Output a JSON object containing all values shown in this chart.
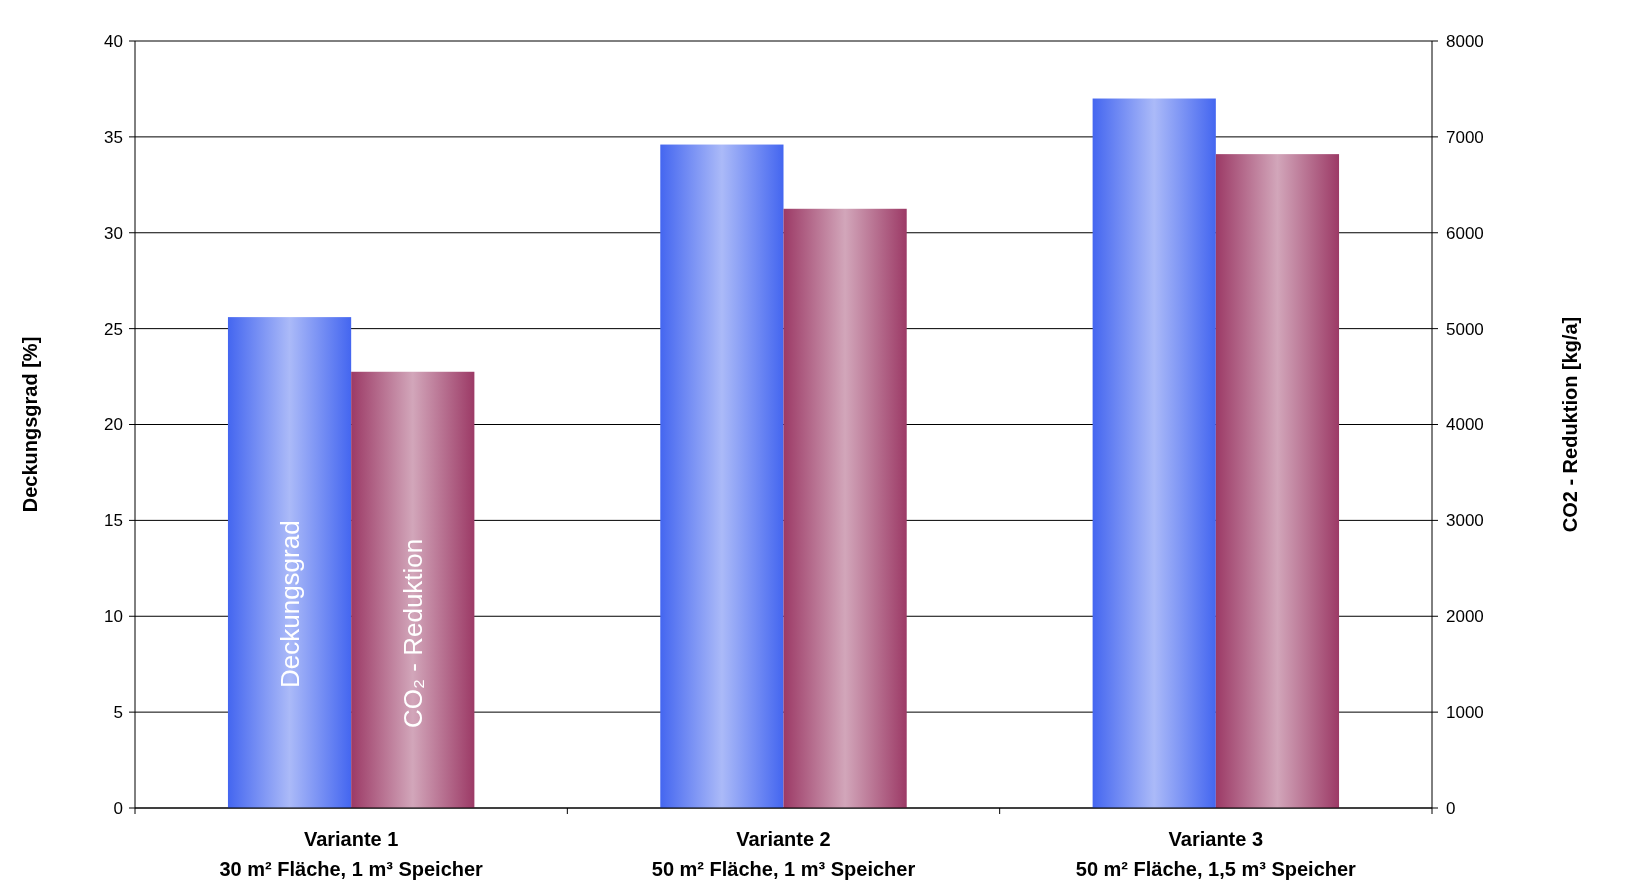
{
  "chart_data": {
    "type": "bar",
    "ylabel": "Deckungsgrad [%]",
    "y2label": "CO2 - Reduktion [kg/a]",
    "categories": [
      "Variante 1\n30 m² Fläche, 1 m³ Speicher",
      "Variante 2\n50 m² Fläche, 1 m³ Speicher",
      "Variante 3\n50 m² Fläche, 1,5 m³ Speicher"
    ],
    "series": [
      {
        "name": "Deckungsgrad",
        "color": "#4466f0",
        "values": [
          25.6,
          34.6,
          37
        ]
      },
      {
        "name": "CO₂ - Reduktion",
        "color": "#9c3a66",
        "axis": "y2",
        "values": [
          4550,
          6250,
          6820
        ]
      }
    ],
    "ylim": [
      0,
      40
    ],
    "yticks": [
      0,
      5,
      10,
      15,
      20,
      25,
      30,
      35,
      40
    ],
    "y2lim": [
      0,
      8000
    ],
    "y2ticks": [
      0,
      1000,
      2000,
      3000,
      4000,
      5000,
      6000,
      7000,
      8000
    ],
    "grid": "y"
  }
}
